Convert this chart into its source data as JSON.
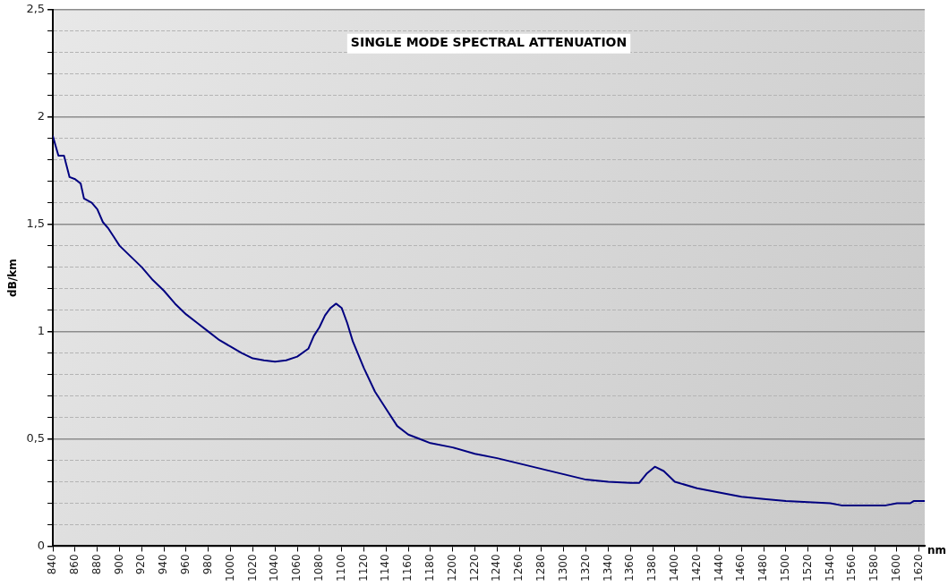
{
  "chart_data": {
    "type": "line",
    "title": "SINGLE MODE SPECTRAL ATTENUATION",
    "xlabel": "nm",
    "ylabel": "dB/km",
    "x": [
      840,
      845,
      850,
      855,
      860,
      865,
      868,
      875,
      880,
      885,
      890,
      895,
      900,
      910,
      920,
      930,
      940,
      950,
      960,
      970,
      980,
      990,
      1000,
      1010,
      1020,
      1030,
      1040,
      1050,
      1060,
      1070,
      1075,
      1080,
      1085,
      1090,
      1095,
      1100,
      1105,
      1110,
      1120,
      1130,
      1140,
      1150,
      1160,
      1170,
      1180,
      1200,
      1220,
      1240,
      1260,
      1280,
      1300,
      1320,
      1340,
      1360,
      1368,
      1375,
      1382,
      1390,
      1400,
      1420,
      1440,
      1460,
      1480,
      1500,
      1540,
      1550,
      1590,
      1600,
      1612,
      1615,
      1625
    ],
    "series": [
      {
        "color": "#000080",
        "values": [
          1.91,
          1.82,
          1.82,
          1.72,
          1.71,
          1.69,
          1.62,
          1.6,
          1.57,
          1.51,
          1.48,
          1.44,
          1.4,
          1.35,
          1.3,
          1.24,
          1.19,
          1.13,
          1.08,
          1.04,
          1.0,
          0.96,
          0.93,
          0.9,
          0.875,
          0.866,
          0.86,
          0.866,
          0.883,
          0.92,
          0.98,
          1.02,
          1.075,
          1.11,
          1.13,
          1.11,
          1.04,
          0.955,
          0.83,
          0.72,
          0.64,
          0.56,
          0.52,
          0.5,
          0.48,
          0.46,
          0.43,
          0.41,
          0.385,
          0.36,
          0.335,
          0.31,
          0.3,
          0.295,
          0.295,
          0.34,
          0.37,
          0.35,
          0.3,
          0.27,
          0.25,
          0.23,
          0.22,
          0.21,
          0.2,
          0.19,
          0.19,
          0.2,
          0.2,
          0.21,
          0.21
        ]
      }
    ],
    "xlim": [
      840,
      1625
    ],
    "xticks": [
      840,
      860,
      880,
      900,
      920,
      940,
      960,
      980,
      1000,
      1020,
      1040,
      1060,
      1080,
      1100,
      1120,
      1140,
      1160,
      1180,
      1200,
      1220,
      1240,
      1260,
      1280,
      1300,
      1320,
      1340,
      1360,
      1380,
      1400,
      1420,
      1440,
      1460,
      1480,
      1500,
      1520,
      1540,
      1560,
      1580,
      1600,
      1620
    ],
    "ylim": [
      0,
      2.5
    ],
    "yticks": [
      0,
      {
        "value": 0.1,
        "label": null
      },
      {
        "value": 0.2,
        "label": null
      },
      {
        "value": 0.3,
        "label": null
      },
      {
        "value": 0.4,
        "label": null
      },
      {
        "value": 0.5,
        "label": "0,5"
      },
      {
        "value": 0.6,
        "label": null
      },
      {
        "value": 0.7,
        "label": null
      },
      {
        "value": 0.8,
        "label": null
      },
      {
        "value": 0.9,
        "label": null
      },
      1,
      {
        "value": 1.1,
        "label": null
      },
      {
        "value": 1.2,
        "label": null
      },
      {
        "value": 1.3,
        "label": null
      },
      {
        "value": 1.4,
        "label": null
      },
      {
        "value": 1.5,
        "label": "1,5"
      },
      {
        "value": 1.6,
        "label": null
      },
      {
        "value": 1.7,
        "label": null
      },
      {
        "value": 1.8,
        "label": null
      },
      {
        "value": 1.9,
        "label": null
      },
      2,
      {
        "value": 2.1,
        "label": null
      },
      {
        "value": 2.2,
        "label": null
      },
      {
        "value": 2.3,
        "label": null
      },
      {
        "value": 2.4,
        "label": null
      },
      {
        "value": 2.5,
        "label": "2,5"
      }
    ],
    "grid": "y",
    "legend": false,
    "marker": "none",
    "line_style": "solid"
  }
}
